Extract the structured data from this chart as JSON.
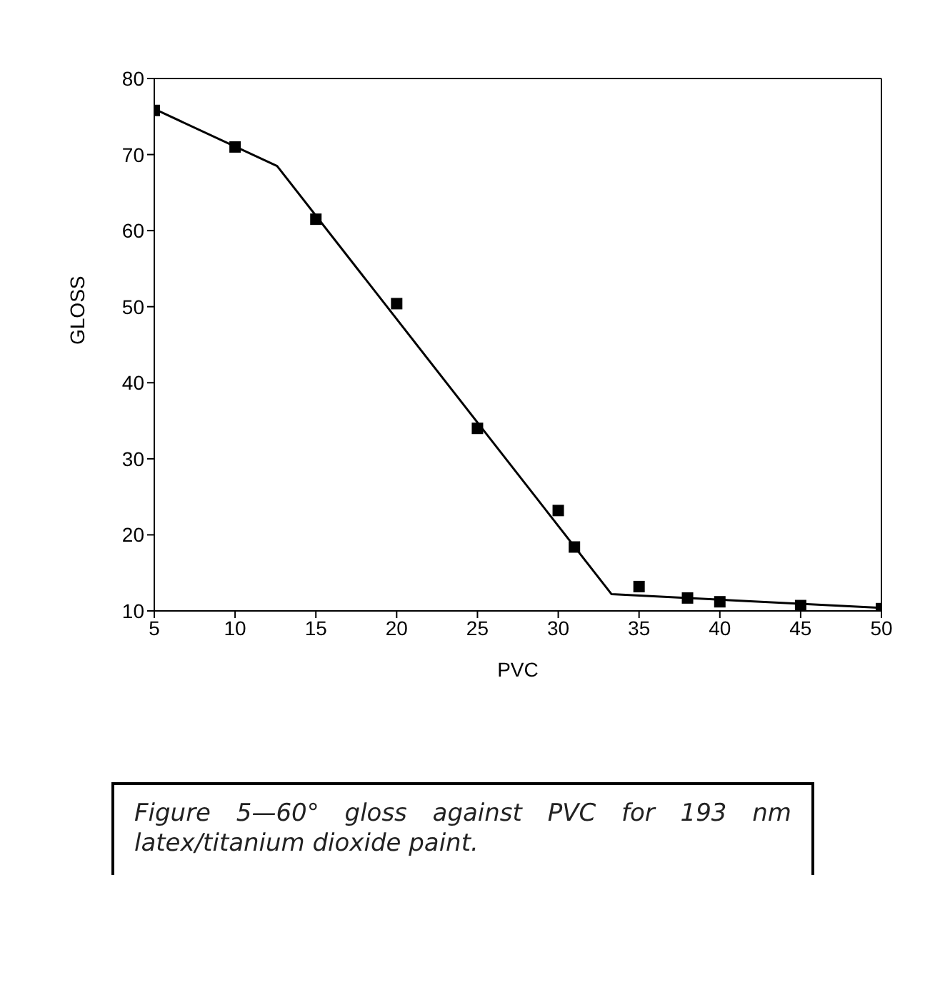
{
  "chart_data": {
    "type": "scatter",
    "xlabel": "PVC",
    "ylabel": "GLOSS",
    "xlim": [
      5,
      50
    ],
    "xticks": [
      5,
      10,
      15,
      20,
      25,
      30,
      35,
      40,
      45,
      50
    ],
    "ylim": [
      10,
      80
    ],
    "yticks": [
      10,
      20,
      30,
      40,
      50,
      60,
      70,
      80
    ],
    "annotations": [
      "Figure 5—60° gloss against PVC for 193 nm latex/titanium dioxide paint."
    ],
    "series": [
      {
        "marker": "square",
        "color": "#000000",
        "x": [
          5,
          10,
          15,
          20,
          25,
          30,
          31,
          35,
          38,
          40,
          45,
          50
        ],
        "values": [
          75.8,
          71.0,
          61.5,
          50.4,
          34.0,
          23.2,
          18.4,
          13.2,
          11.7,
          11.2,
          10.7,
          10.3
        ]
      },
      {
        "type": "line",
        "marker": "none",
        "color": "#000000",
        "x": [
          5,
          12.6,
          33.3,
          50
        ],
        "values": [
          76,
          68.5,
          12.2,
          10.4
        ]
      }
    ]
  }
}
